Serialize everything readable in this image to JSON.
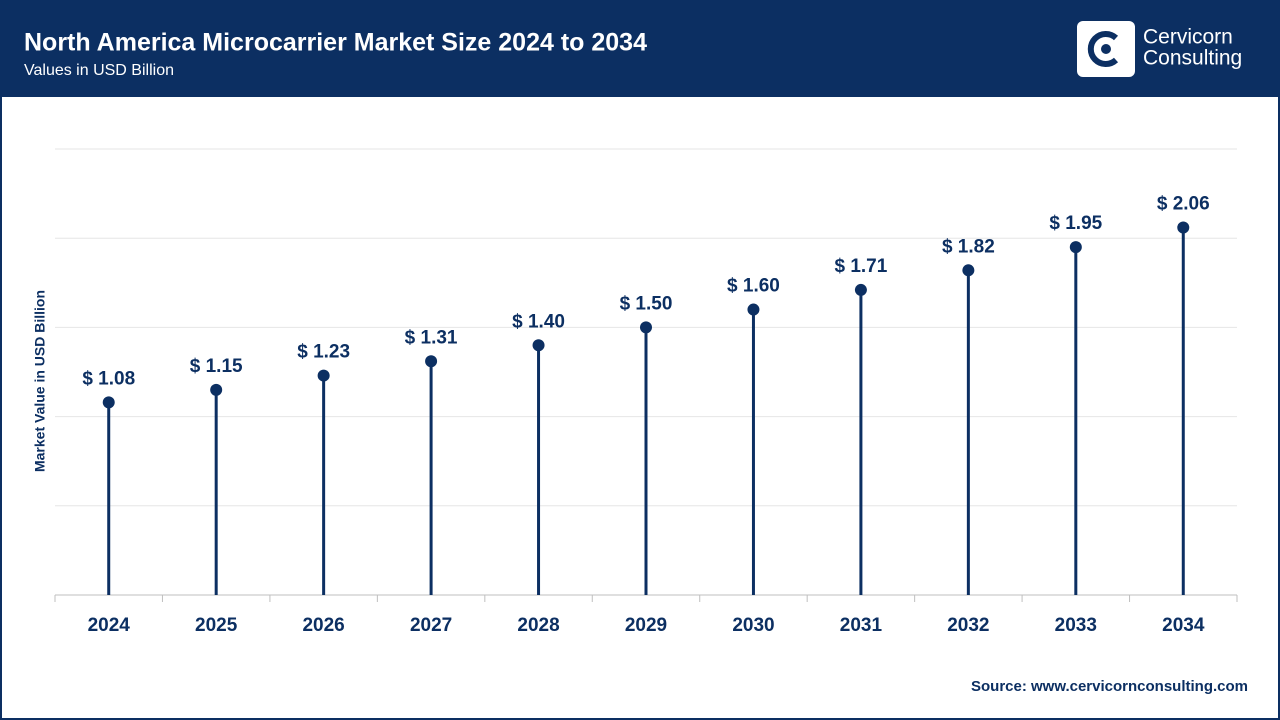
{
  "chart_data": {
    "type": "lollipop",
    "title": "North America Microcarrier Market Size 2024 to 2034",
    "subtitle": "Values in USD Billion",
    "y_label": "Market Value in USD Billion",
    "categories": [
      "2024",
      "2025",
      "2026",
      "2027",
      "2028",
      "2029",
      "2030",
      "2031",
      "2032",
      "2033",
      "2034"
    ],
    "values": [
      1.08,
      1.15,
      1.23,
      1.31,
      1.4,
      1.5,
      1.6,
      1.71,
      1.82,
      1.95,
      2.06
    ],
    "value_labels": [
      "$ 1.08",
      "$ 1.15",
      "$ 1.23",
      "$ 1.31",
      "$ 1.40",
      "$ 1.50",
      "$ 1.60",
      "$ 1.71",
      "$ 1.82",
      "$ 1.95",
      "$ 2.06"
    ],
    "color": "#0c2f62",
    "ylim": [
      0,
      2.5
    ],
    "yticks": [
      0,
      0.5,
      1,
      1.5,
      2,
      2.5
    ],
    "grid": true,
    "source": "Source: www.cervicornconsulting.com"
  },
  "logo": {
    "lines": [
      "Cervicorn",
      "Consulting"
    ]
  }
}
